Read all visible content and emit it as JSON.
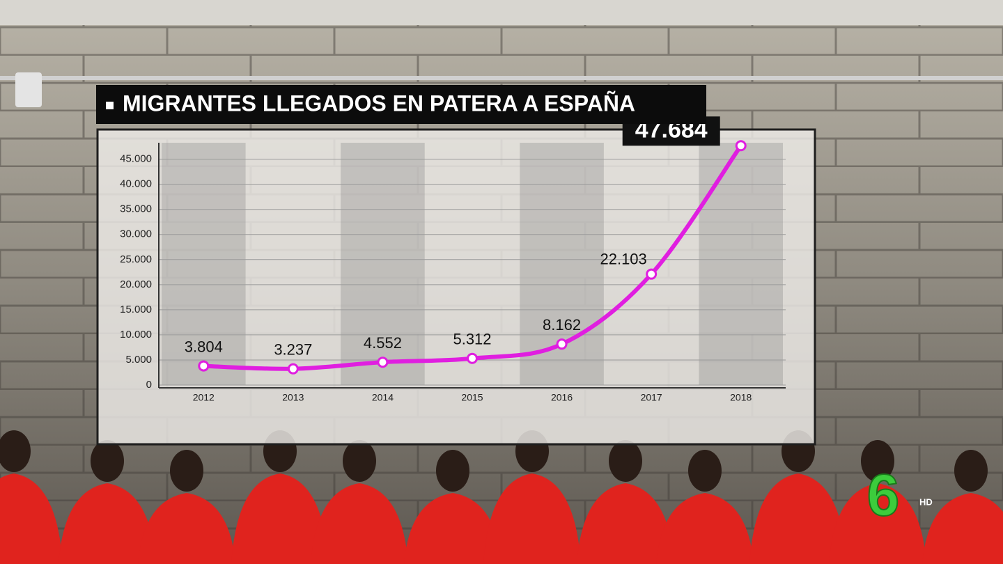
{
  "chart_data": {
    "type": "line",
    "title": "MIGRANTES LLEGADOS EN PATERA A ESPAÑA",
    "categories": [
      "2012",
      "2013",
      "2014",
      "2015",
      "2016",
      "2017",
      "2018"
    ],
    "values": [
      3804,
      3237,
      4552,
      5312,
      8162,
      22103,
      47684
    ],
    "value_labels": [
      "3.804",
      "3.237",
      "4.552",
      "5.312",
      "8.162",
      "22.103",
      "47.684"
    ],
    "color": "#e01ee0",
    "ylim": [
      0,
      48000
    ],
    "yticks": [
      0,
      {
        "value": 5000,
        "label": "5.000"
      },
      {
        "value": 10000,
        "label": "10.000"
      },
      {
        "value": 15000,
        "label": "15.000"
      },
      {
        "value": 20000,
        "label": "20.000"
      },
      {
        "value": 25000,
        "label": "25.000"
      },
      {
        "value": 30000,
        "label": "30.000"
      },
      {
        "value": 35000,
        "label": "35.000"
      },
      {
        "value": 40000,
        "label": "40.000"
      },
      {
        "value": 45000,
        "label": "45.000"
      }
    ],
    "grid": true
  },
  "channel_logo": {
    "number": "6",
    "label": "HD"
  }
}
